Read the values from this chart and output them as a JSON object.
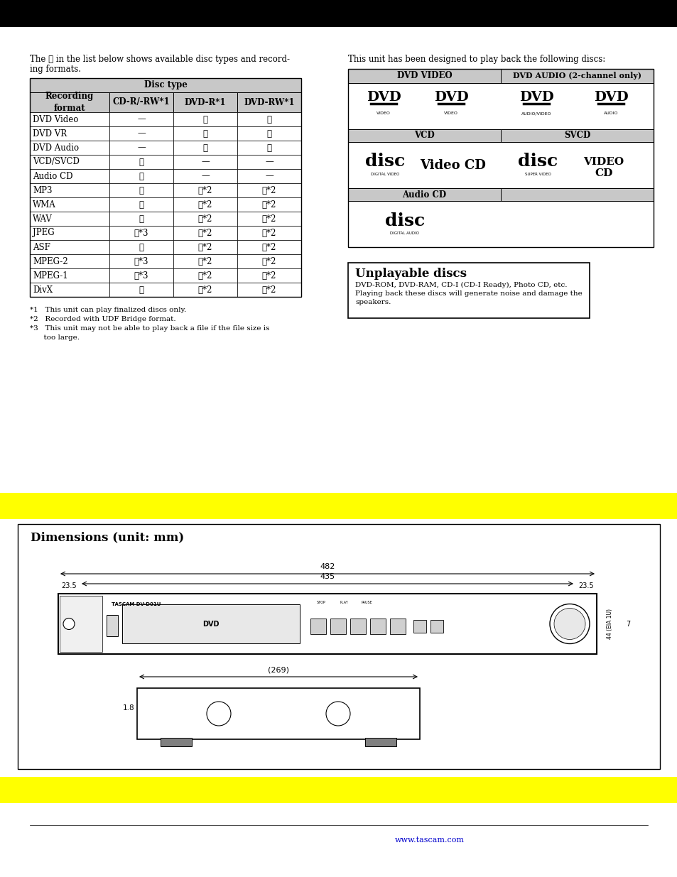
{
  "page_bg": "#ffffff",
  "top_bar_color": "#000000",
  "yellow_bar_color": "#ffff00",
  "intro_text_line1": "The ✓ in the list below shows available disc types and record-",
  "intro_text_line2": "ing formats.",
  "table_disc_type_header": "Disc type",
  "table_col0_label": "Recording\nformat",
  "table_col_headers": [
    "CD-R/-RW*1",
    "DVD-R*1",
    "DVD-RW*1"
  ],
  "table_rows": [
    [
      "DVD Video",
      "—",
      "✓",
      "✓"
    ],
    [
      "DVD VR",
      "—",
      "✓",
      "✓"
    ],
    [
      "DVD Audio",
      "—",
      "✓",
      "✓"
    ],
    [
      "VCD/SVCD",
      "✓",
      "—",
      "—"
    ],
    [
      "Audio CD",
      "✓",
      "—",
      "—"
    ],
    [
      "MP3",
      "✓",
      "✓*2",
      "✓*2"
    ],
    [
      "WMA",
      "✓",
      "✓*2",
      "✓*2"
    ],
    [
      "WAV",
      "✓",
      "✓*2",
      "✓*2"
    ],
    [
      "JPEG",
      "✓*3",
      "✓*2",
      "✓*2"
    ],
    [
      "ASF",
      "✓",
      "✓*2",
      "✓*2"
    ],
    [
      "MPEG-2",
      "✓*3",
      "✓*2",
      "✓*2"
    ],
    [
      "MPEG-1",
      "✓*3",
      "✓*2",
      "✓*2"
    ],
    [
      "DivX",
      "✓",
      "✓*2",
      "✓*2"
    ]
  ],
  "footnotes": [
    "*1   This unit can play finalized discs only.",
    "*2   Recorded with UDF Bridge format.",
    "*3   This unit may not be able to play back a file if the file size is",
    "      too large."
  ],
  "right_intro": "This unit has been designed to play back the following discs:",
  "right_col1_header": "DVD VIDEO",
  "right_col2_header": "DVD AUDIO (2-channel only)",
  "vcd_header": "VCD",
  "svcd_header": "SVCD",
  "audio_cd_header": "Audio CD",
  "unplayable_title": "Unplayable discs",
  "unplayable_body": "DVD-ROM, DVD-RAM, CD-I (CD-I Ready), Photo CD, etc.\nPlaying back these discs will generate noise and damage the\nspeakers.",
  "dimensions_title": "Dimensions (unit: mm)",
  "dim_482": "482",
  "dim_435": "435",
  "dim_235_left": "23.5",
  "dim_235_right": "23.5",
  "dim_269": "(269)",
  "dim_18": "1.8",
  "dim_7": "7",
  "dim_44": "44 (EIA 1U)",
  "gray_header": "#c8c8c8",
  "border_color": "#000000",
  "url_text": "www.tascam.com",
  "url_color": "#0000cc"
}
